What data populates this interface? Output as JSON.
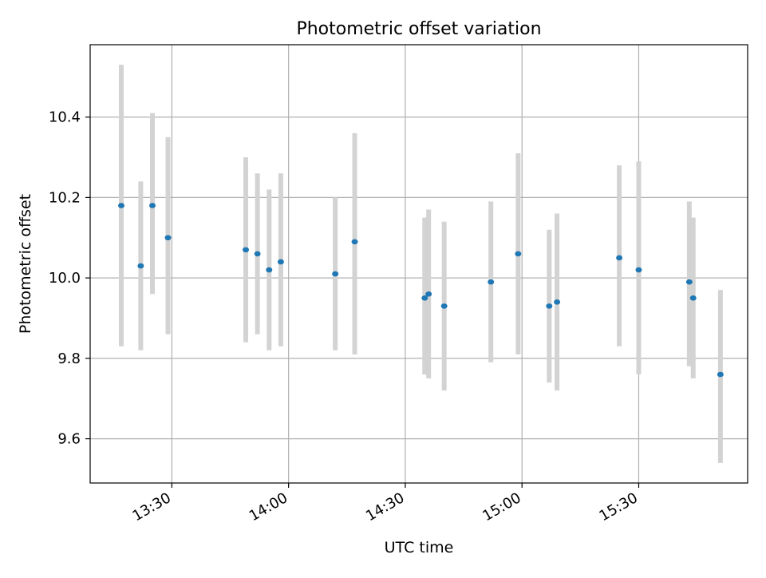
{
  "chart_data": {
    "type": "scatter",
    "title": "Photometric offset variation",
    "xlabel": "UTC time",
    "ylabel": "Photometric offset",
    "x_axis_kind": "time",
    "xlim": [
      "13:09",
      "15:58"
    ],
    "ylim": [
      9.49,
      10.58
    ],
    "x_ticks": [
      "13:30",
      "14:00",
      "14:30",
      "15:00",
      "15:30"
    ],
    "y_ticks": [
      9.6,
      9.8,
      10.0,
      10.2,
      10.4
    ],
    "grid": true,
    "legend": "none",
    "colors": {
      "point": "#1f77b4",
      "errorbar": "#d3d3d3",
      "grid": "#b0b0b0",
      "axes": "#000000"
    },
    "series": [
      {
        "points": [
          {
            "x": "13:17",
            "y": 10.18,
            "err_low": 9.83,
            "err_high": 10.53
          },
          {
            "x": "13:22",
            "y": 10.03,
            "err_low": 9.82,
            "err_high": 10.24
          },
          {
            "x": "13:25",
            "y": 10.18,
            "err_low": 9.96,
            "err_high": 10.41
          },
          {
            "x": "13:29",
            "y": 10.1,
            "err_low": 9.86,
            "err_high": 10.35
          },
          {
            "x": "13:49",
            "y": 10.07,
            "err_low": 9.84,
            "err_high": 10.3
          },
          {
            "x": "13:52",
            "y": 10.06,
            "err_low": 9.86,
            "err_high": 10.26
          },
          {
            "x": "13:55",
            "y": 10.02,
            "err_low": 9.82,
            "err_high": 10.22
          },
          {
            "x": "13:58",
            "y": 10.04,
            "err_low": 9.83,
            "err_high": 10.26
          },
          {
            "x": "14:12",
            "y": 10.01,
            "err_low": 9.82,
            "err_high": 10.2
          },
          {
            "x": "14:17",
            "y": 10.09,
            "err_low": 9.81,
            "err_high": 10.36
          },
          {
            "x": "14:35",
            "y": 9.95,
            "err_low": 9.76,
            "err_high": 10.15
          },
          {
            "x": "14:36",
            "y": 9.96,
            "err_low": 9.75,
            "err_high": 10.17
          },
          {
            "x": "14:40",
            "y": 9.93,
            "err_low": 9.72,
            "err_high": 10.14
          },
          {
            "x": "14:52",
            "y": 9.99,
            "err_low": 9.79,
            "err_high": 10.19
          },
          {
            "x": "14:59",
            "y": 10.06,
            "err_low": 9.81,
            "err_high": 10.31
          },
          {
            "x": "15:07",
            "y": 9.93,
            "err_low": 9.74,
            "err_high": 10.12
          },
          {
            "x": "15:09",
            "y": 9.94,
            "err_low": 9.72,
            "err_high": 10.16
          },
          {
            "x": "15:25",
            "y": 10.05,
            "err_low": 9.83,
            "err_high": 10.28
          },
          {
            "x": "15:30",
            "y": 10.02,
            "err_low": 9.76,
            "err_high": 10.29
          },
          {
            "x": "15:43",
            "y": 9.99,
            "err_low": 9.78,
            "err_high": 10.19
          },
          {
            "x": "15:44",
            "y": 9.95,
            "err_low": 9.75,
            "err_high": 10.15
          },
          {
            "x": "15:51",
            "y": 9.76,
            "err_low": 9.54,
            "err_high": 9.97
          }
        ]
      }
    ]
  }
}
